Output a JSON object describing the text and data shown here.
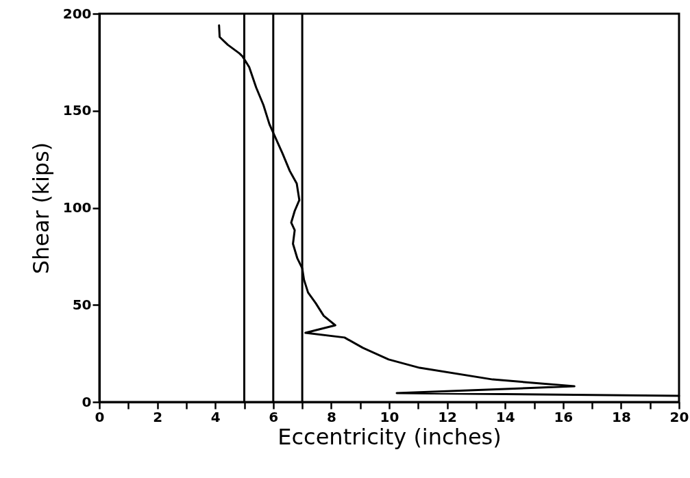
{
  "chart_data": {
    "type": "line",
    "xlabel": "Eccentricity (inches)",
    "ylabel": "Shear (kips)",
    "xlim": [
      0,
      20
    ],
    "ylim": [
      0,
      200
    ],
    "xticks": [
      0,
      {
        "value": 1,
        "label": null
      },
      2,
      {
        "value": 3,
        "label": null
      },
      4,
      {
        "value": 5,
        "label": null
      },
      6,
      {
        "value": 7,
        "label": null
      },
      8,
      {
        "value": 9,
        "label": null
      },
      10,
      {
        "value": 11,
        "label": null
      },
      12,
      {
        "value": 13,
        "label": null
      },
      14,
      {
        "value": 15,
        "label": null
      },
      16,
      {
        "value": 17,
        "label": null
      },
      18,
      {
        "value": 19,
        "label": null
      },
      20
    ],
    "yticks": [
      0,
      50,
      100,
      150,
      200
    ],
    "grid": false,
    "marker": "none",
    "line_style": "solid",
    "ref_lines": [
      {
        "axis": "x",
        "value": 5,
        "color": "#000000"
      },
      {
        "axis": "x",
        "value": 6,
        "color": "#000000"
      },
      {
        "axis": "x",
        "value": 7,
        "color": "#000000"
      }
    ],
    "series": [
      {
        "color": "#000000",
        "x": [
          4.13,
          4.15,
          4.43,
          4.83,
          4.94,
          5.17,
          5.41,
          5.66,
          5.87,
          6.32,
          6.57,
          6.81,
          6.9,
          6.74,
          6.62,
          6.74,
          6.68,
          6.83,
          7.0,
          7.06,
          7.2,
          7.46,
          7.74,
          8.14,
          7.11,
          8.46,
          9.09,
          9.98,
          11.05,
          13.57,
          16.39,
          10.26,
          20
        ],
        "values": [
          194,
          188,
          184,
          179.6,
          178,
          172.5,
          162,
          153,
          143,
          128,
          119,
          112.5,
          104,
          98.4,
          92.4,
          88.5,
          81.5,
          74,
          68.8,
          63,
          56.4,
          51,
          44.4,
          39.5,
          35.6,
          33.2,
          27.9,
          21.9,
          17.6,
          11.6,
          8.1,
          4.6,
          3.2
        ]
      }
    ]
  }
}
